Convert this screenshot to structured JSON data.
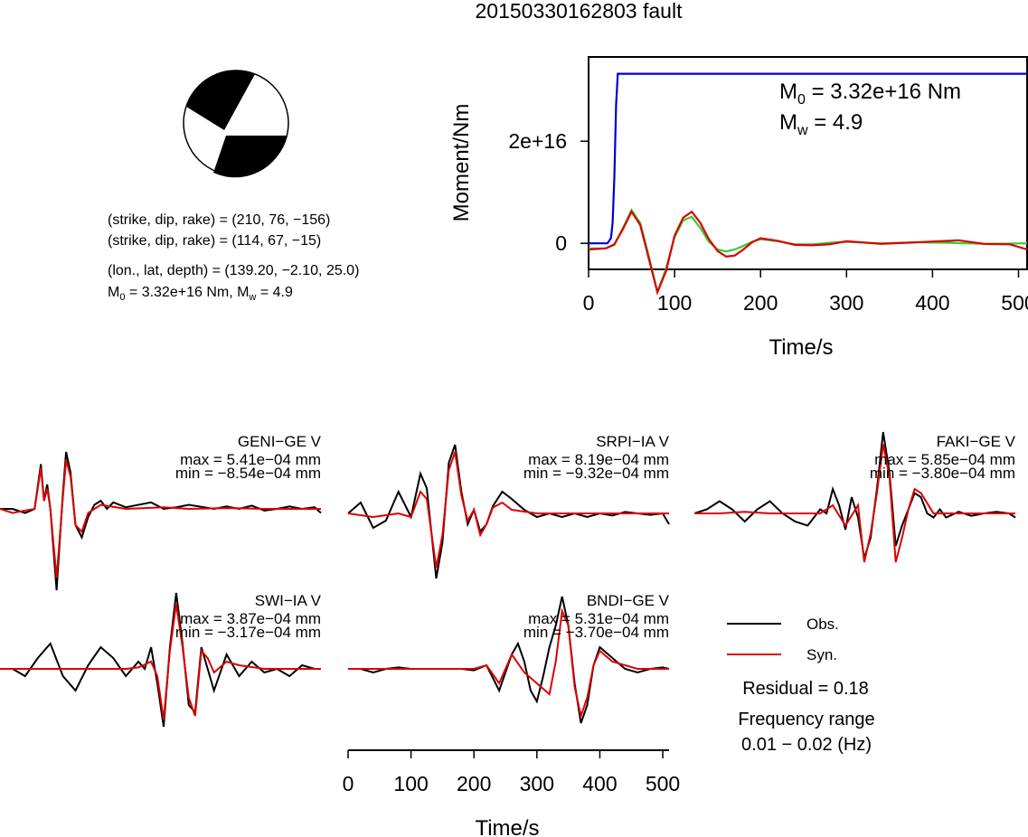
{
  "title": "20150330162803 fault",
  "mechanism": {
    "nodal_plane_1": "(strike, dip, rake) = (210, 76, −156)",
    "nodal_plane_2": "(strike, dip, rake) = (114, 67, −15)",
    "location": "(lon., lat, depth) = (139.20, −2.10, 25.0)",
    "moment_m0_prefix": "M",
    "moment_m0_sub": "0",
    "moment_m0_value": " = 3.32e+16 Nm, M",
    "moment_mw_sub": "w",
    "moment_mw_value": " = 4.9",
    "beachball_fill": "#000000"
  },
  "moment_plot": {
    "ylabel": "Moment/Nm",
    "xlabel": "Time/s",
    "m0_prefix": "M",
    "m0_sub": "0",
    "m0_value": " = 3.32e+16 Nm",
    "mw_prefix": "M",
    "mw_sub": "w",
    "mw_value": " = 4.9"
  },
  "chart_data": [
    {
      "type": "line",
      "id": "moment",
      "xlim": [
        0,
        510
      ],
      "ylim": [
        -5100000000000000.0,
        3.65e+16
      ],
      "xticks": [
        0,
        100,
        200,
        300,
        400,
        500
      ],
      "xtick_labels": [
        "0",
        "100",
        "200",
        "300",
        "400",
        "500"
      ],
      "yticks": [
        0,
        2e+16
      ],
      "ytick_labels": [
        "0",
        "2e+16"
      ],
      "series": [
        {
          "id": "cumulative",
          "color": "#0000cc",
          "x": [
            0,
            22,
            26,
            28,
            30,
            32,
            34,
            36,
            510
          ],
          "y": [
            0,
            0,
            1000000000000000.0,
            4000000000000000.0,
            1.3e+16,
            2.7e+16,
            3.32e+16,
            3.32e+16,
            3.32e+16
          ]
        },
        {
          "id": "rate_green",
          "color": "#33cc33",
          "x": [
            0,
            20,
            30,
            40,
            50,
            60,
            70,
            80,
            90,
            100,
            110,
            120,
            130,
            140,
            150,
            160,
            170,
            180,
            190,
            200,
            220,
            240,
            260,
            280,
            300,
            340,
            380,
            420,
            460,
            510
          ],
          "y": [
            -1000000000000000.0,
            -1000000000000000.0,
            -300000000000000.0,
            3000000000000000.0,
            6500000000000000.0,
            4000000000000000.0,
            -2500000000000000.0,
            -9500000000000000.0,
            -5000000000000000.0,
            1200000000000000.0,
            4500000000000000.0,
            5200000000000000.0,
            3000000000000000.0,
            300000000000000.0,
            -1200000000000000.0,
            -1600000000000000.0,
            -1200000000000000.0,
            -500000000000000.0,
            300000000000000.0,
            800000000000000.0,
            400000000000000.0,
            -200000000000000.0,
            -200000000000000.0,
            100000000000000.0,
            300000000000000.0,
            0,
            200000000000000.0,
            100000000000000.0,
            -100000000000000.0,
            0
          ]
        },
        {
          "id": "rate_red",
          "color": "#dd0000",
          "x": [
            0,
            20,
            30,
            40,
            50,
            60,
            70,
            80,
            90,
            100,
            110,
            120,
            130,
            140,
            150,
            160,
            170,
            180,
            190,
            200,
            220,
            240,
            260,
            280,
            300,
            340,
            380,
            420,
            430,
            460,
            490,
            510
          ],
          "y": [
            -1200000000000000.0,
            -1000000000000000.0,
            -200000000000000.0,
            2800000000000000.0,
            6200000000000000.0,
            3600000000000000.0,
            -3000000000000000.0,
            -9600000000000000.0,
            -5500000000000000.0,
            1500000000000000.0,
            5000000000000000.0,
            6200000000000000.0,
            4000000000000000.0,
            800000000000000.0,
            -1500000000000000.0,
            -2600000000000000.0,
            -2400000000000000.0,
            -1200000000000000.0,
            200000000000000.0,
            1000000000000000.0,
            500000000000000.0,
            -300000000000000.0,
            -400000000000000.0,
            -200000000000000.0,
            400000000000000.0,
            -100000000000000.0,
            200000000000000.0,
            500000000000000.0,
            600000000000000.0,
            -100000000000000.0,
            -200000000000000.0,
            -1200000000000000.0
          ]
        }
      ]
    },
    {
      "type": "line",
      "id": "waveforms",
      "xlabel": "Time/s",
      "xlim": [
        0,
        510
      ],
      "xticks": [
        0,
        100,
        200,
        300,
        400,
        500
      ],
      "xtick_labels": [
        "0",
        "100",
        "200",
        "300",
        "400",
        "500"
      ],
      "legend": {
        "placement": "bottom-right",
        "obs": "Obs.",
        "syn": "Syn.",
        "obs_color": "#000000",
        "syn_color": "#dd0000"
      },
      "residual": "Residual = 0.18",
      "frequency_label": "Frequency range",
      "frequency_range": "0.01 − 0.02 (Hz)",
      "stations": [
        {
          "name": "GENI−GE V",
          "max": "max = 5.41e−04 mm",
          "min": "min = −8.54e−04 mm",
          "obs_x": [
            0,
            20,
            40,
            55,
            65,
            70,
            75,
            80,
            90,
            100,
            105,
            112,
            120,
            130,
            140,
            150,
            160,
            170,
            180,
            200,
            240,
            260,
            280,
            300,
            340,
            360,
            380,
            400,
            420,
            440,
            460,
            480,
            500,
            510
          ],
          "obs_y": [
            0,
            0,
            -0.05,
            0,
            0.55,
            0.1,
            0.3,
            0.0,
            -1.0,
            0.2,
            0.7,
            0.45,
            -0.2,
            -0.35,
            -0.1,
            0.05,
            0.1,
            0.0,
            0.08,
            0.02,
            0.08,
            0.0,
            0.02,
            0.05,
            0.0,
            0.03,
            0.0,
            0.04,
            -0.02,
            0.0,
            0.03,
            0.0,
            0.02,
            -0.05
          ],
          "syn_x": [
            0,
            20,
            40,
            55,
            65,
            70,
            75,
            80,
            90,
            100,
            105,
            112,
            120,
            130,
            140,
            160,
            200,
            260,
            300,
            360,
            420,
            480,
            510
          ],
          "syn_y": [
            0,
            -0.05,
            -0.02,
            0.0,
            0.5,
            0.1,
            0.25,
            0.0,
            -0.85,
            0.15,
            0.6,
            0.4,
            -0.2,
            -0.28,
            -0.05,
            0.05,
            0.0,
            0.02,
            0.0,
            0.01,
            0.0,
            0.0,
            0.0
          ]
        },
        {
          "name": "SRPI−IA V",
          "max": "max = 8.19e−04 mm",
          "min": "min = −9.32e−04 mm",
          "obs_x": [
            0,
            20,
            40,
            60,
            80,
            100,
            115,
            125,
            140,
            150,
            160,
            170,
            180,
            190,
            200,
            210,
            220,
            230,
            245,
            260,
            280,
            300,
            320,
            340,
            360,
            380,
            400,
            420,
            440,
            460,
            480,
            500,
            510
          ],
          "obs_y": [
            0,
            0.15,
            -0.2,
            -0.1,
            0.3,
            -0.05,
            0.55,
            0.35,
            -0.9,
            -0.4,
            0.7,
            0.95,
            0.3,
            -0.15,
            0.05,
            -0.25,
            -0.15,
            0.1,
            0.3,
            0.2,
            0.05,
            -0.05,
            0.0,
            -0.05,
            0.0,
            -0.05,
            0.0,
            -0.03,
            0.02,
            0.0,
            -0.02,
            0.0,
            -0.15
          ],
          "syn_x": [
            0,
            40,
            80,
            100,
            115,
            125,
            140,
            150,
            160,
            170,
            180,
            190,
            200,
            210,
            220,
            230,
            245,
            260,
            300,
            360,
            420,
            480,
            510
          ],
          "syn_y": [
            0,
            -0.05,
            0.0,
            -0.05,
            0.3,
            0.2,
            -0.75,
            -0.3,
            0.6,
            0.85,
            0.25,
            -0.1,
            0.05,
            -0.3,
            -0.15,
            0.08,
            0.15,
            0.05,
            0.0,
            0.0,
            0.0,
            0.0,
            0.0
          ]
        },
        {
          "name": "FAKI−GE V",
          "max": "max = 5.85e−04 mm",
          "min": "min = −3.80e−04 mm",
          "obs_x": [
            0,
            20,
            40,
            60,
            80,
            100,
            120,
            140,
            160,
            180,
            200,
            210,
            220,
            230,
            240,
            250,
            260,
            270,
            280,
            290,
            300,
            310,
            320,
            330,
            340,
            350,
            360,
            370,
            380,
            390,
            400,
            420,
            440,
            460,
            480,
            500,
            510
          ],
          "obs_y": [
            0,
            0.05,
            0.15,
            0.05,
            -0.1,
            0.05,
            0.15,
            0.0,
            -0.1,
            -0.15,
            0.05,
            0.0,
            0.3,
            0.1,
            -0.2,
            0.2,
            -0.05,
            -0.55,
            -0.3,
            0.3,
            1.0,
            0.5,
            -0.4,
            -0.15,
            0.05,
            0.25,
            0.2,
            0.0,
            -0.05,
            0.05,
            -0.05,
            0.02,
            -0.03,
            0.0,
            0.02,
            0.0,
            -0.05
          ],
          "syn_x": [
            0,
            40,
            80,
            120,
            160,
            200,
            220,
            240,
            260,
            270,
            280,
            290,
            300,
            310,
            320,
            330,
            340,
            350,
            360,
            380,
            420,
            460,
            510
          ],
          "syn_y": [
            0,
            0.0,
            0.02,
            0.0,
            0.0,
            0.0,
            0.1,
            -0.15,
            0.1,
            -0.6,
            -0.25,
            0.25,
            0.85,
            0.45,
            -0.6,
            -0.3,
            0.05,
            0.3,
            0.25,
            0.0,
            0.0,
            0.0,
            0.0
          ]
        },
        {
          "name": "SWI−IA V",
          "max": "max = 3.87e−04 mm",
          "min": "min = −3.17e−04 mm",
          "obs_x": [
            0,
            20,
            40,
            60,
            80,
            100,
            120,
            140,
            160,
            180,
            200,
            220,
            230,
            240,
            250,
            260,
            270,
            280,
            290,
            300,
            310,
            320,
            330,
            340,
            360,
            380,
            400,
            420,
            440,
            460,
            480,
            500,
            510
          ],
          "obs_y": [
            0,
            0.0,
            -0.1,
            0.15,
            0.35,
            -0.1,
            -0.3,
            0.05,
            0.3,
            0.15,
            -0.1,
            0.1,
            0.0,
            0.3,
            -0.2,
            -0.8,
            0.3,
            1.05,
            0.35,
            -0.5,
            -0.6,
            0.3,
            0.0,
            -0.3,
            0.2,
            -0.1,
            0.1,
            -0.05,
            0.0,
            -0.1,
            0.05,
            0.0,
            0.0
          ],
          "syn_x": [
            0,
            40,
            80,
            120,
            160,
            200,
            220,
            240,
            250,
            260,
            270,
            280,
            290,
            300,
            310,
            320,
            330,
            340,
            360,
            380,
            420,
            460,
            510
          ],
          "syn_y": [
            0,
            0.0,
            0.0,
            0.0,
            0.0,
            0.0,
            0.02,
            0.1,
            -0.1,
            -0.7,
            0.25,
            0.9,
            0.3,
            -0.4,
            -0.65,
            0.25,
            0.15,
            -0.05,
            0.1,
            0.05,
            0.0,
            0.0,
            0.0
          ]
        },
        {
          "name": "BNDI−GE V",
          "max": "max = 5.31e−04 mm",
          "min": "min = −3.70e−04 mm",
          "obs_x": [
            0,
            20,
            40,
            60,
            80,
            100,
            140,
            180,
            200,
            220,
            240,
            260,
            270,
            280,
            290,
            300,
            310,
            320,
            330,
            340,
            350,
            360,
            370,
            380,
            390,
            400,
            420,
            440,
            460,
            480,
            500,
            510
          ],
          "obs_y": [
            0,
            0.0,
            -0.05,
            0.0,
            0.02,
            0.0,
            0.0,
            0.0,
            -0.02,
            0.05,
            -0.3,
            0.2,
            0.35,
            0.1,
            -0.3,
            -0.45,
            -0.1,
            0.3,
            0.6,
            1.0,
            0.6,
            -0.2,
            -0.75,
            -0.5,
            0.05,
            0.3,
            0.15,
            0.0,
            -0.05,
            0.0,
            0.02,
            0.0
          ],
          "syn_x": [
            0,
            40,
            80,
            120,
            160,
            200,
            220,
            240,
            260,
            280,
            300,
            320,
            330,
            340,
            350,
            360,
            370,
            380,
            390,
            400,
            420,
            460,
            510
          ],
          "syn_y": [
            0,
            0.0,
            0.0,
            0.0,
            0.0,
            0.0,
            0.05,
            -0.2,
            0.2,
            -0.05,
            -0.2,
            -0.35,
            0.1,
            0.8,
            0.6,
            -0.25,
            -0.65,
            -0.4,
            0.05,
            0.25,
            0.1,
            0.0,
            0.0
          ]
        }
      ]
    }
  ]
}
